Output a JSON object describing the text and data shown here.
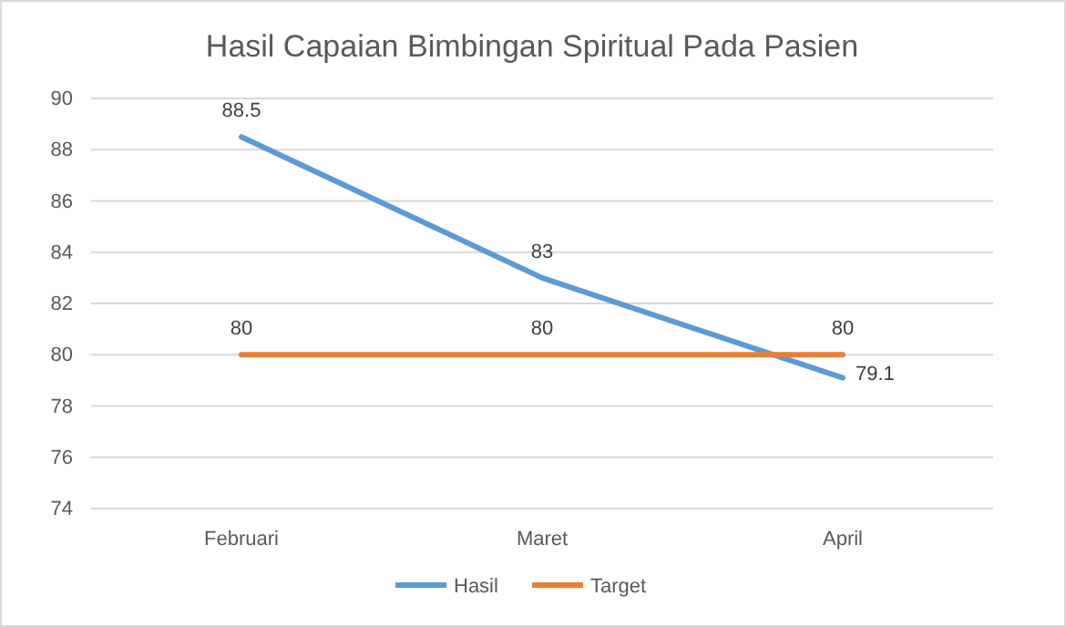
{
  "chart_data": {
    "type": "line",
    "title": "Hasil Capaian Bimbingan Spiritual Pada Pasien",
    "categories": [
      "Februari",
      "Maret",
      "April"
    ],
    "series": [
      {
        "name": "Hasil",
        "color": "#5b9bd5",
        "values": [
          88.5,
          83,
          79.1
        ]
      },
      {
        "name": "Target",
        "color": "#ed7d31",
        "values": [
          80,
          80,
          80
        ]
      }
    ],
    "ylim": [
      74,
      90
    ],
    "yticks": [
      74,
      76,
      78,
      80,
      82,
      84,
      86,
      88,
      90
    ],
    "grid": "y",
    "legend": "bottom",
    "data_labels": true,
    "marker": "none",
    "line_style": "solid"
  }
}
